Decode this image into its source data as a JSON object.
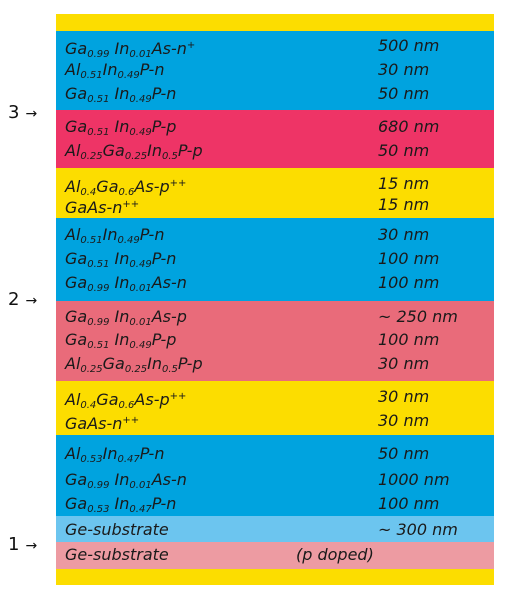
{
  "colors": {
    "yellow": "#fcdd00",
    "blue": "#00a3df",
    "crimson": "#ee3466",
    "rose": "#e96b7a",
    "lightblue": "#6cc5ef",
    "pink": "#ed9ba2"
  },
  "markers": [
    {
      "label": "3",
      "arrow": "→"
    },
    {
      "label": "2",
      "arrow": "→"
    },
    {
      "label": "1",
      "arrow": "→"
    }
  ],
  "layers": [
    {
      "color": "yellow",
      "rows": []
    },
    {
      "color": "blue",
      "rows": [
        {
          "material": [
            [
              "t",
              "Ga"
            ],
            [
              "sub",
              "0.99"
            ],
            [
              "t",
              " In"
            ],
            [
              "sub",
              "0.01"
            ],
            [
              "t",
              "As-n"
            ],
            [
              "sup",
              "+"
            ]
          ],
          "thickness": "500 nm"
        },
        {
          "material": [
            [
              "t",
              "Al"
            ],
            [
              "sub",
              "0.51"
            ],
            [
              "t",
              "In"
            ],
            [
              "sub",
              "0.49"
            ],
            [
              "t",
              "P-n"
            ]
          ],
          "thickness": "30 nm"
        },
        {
          "material": [
            [
              "t",
              "Ga"
            ],
            [
              "sub",
              "0.51"
            ],
            [
              "t",
              " In"
            ],
            [
              "sub",
              "0.49"
            ],
            [
              "t",
              "P-n"
            ]
          ],
          "thickness": "50 nm"
        }
      ]
    },
    {
      "color": "crimson",
      "rows": [
        {
          "material": [
            [
              "t",
              "Ga"
            ],
            [
              "sub",
              "0.51"
            ],
            [
              "t",
              " In"
            ],
            [
              "sub",
              "0.49"
            ],
            [
              "t",
              "P-p"
            ]
          ],
          "thickness": "680 nm"
        },
        {
          "material": [
            [
              "t",
              "Al"
            ],
            [
              "sub",
              "0.25"
            ],
            [
              "t",
              "Ga"
            ],
            [
              "sub",
              "0.25"
            ],
            [
              "t",
              "In"
            ],
            [
              "sub",
              "0.5"
            ],
            [
              "t",
              "P-p"
            ]
          ],
          "thickness": "50 nm"
        }
      ]
    },
    {
      "color": "yellow",
      "rows": [
        {
          "material": [
            [
              "t",
              "Al"
            ],
            [
              "sub",
              "0.4"
            ],
            [
              "t",
              "Ga"
            ],
            [
              "sub",
              "0.6"
            ],
            [
              "t",
              "As-p"
            ],
            [
              "sup",
              "++"
            ]
          ],
          "thickness": "15 nm"
        },
        {
          "material": [
            [
              "t",
              "GaAs-n"
            ],
            [
              "sup",
              "++"
            ]
          ],
          "thickness": "15 nm"
        }
      ]
    },
    {
      "color": "blue",
      "rows": [
        {
          "material": [
            [
              "t",
              "Al"
            ],
            [
              "sub",
              "0.51"
            ],
            [
              "t",
              "In"
            ],
            [
              "sub",
              "0.49"
            ],
            [
              "t",
              "P-n"
            ]
          ],
          "thickness": "30 nm"
        },
        {
          "material": [
            [
              "t",
              "Ga"
            ],
            [
              "sub",
              "0.51"
            ],
            [
              "t",
              " In"
            ],
            [
              "sub",
              "0.49"
            ],
            [
              "t",
              "P-n"
            ]
          ],
          "thickness": "100 nm"
        },
        {
          "material": [
            [
              "t",
              "Ga"
            ],
            [
              "sub",
              "0.99"
            ],
            [
              "t",
              " In"
            ],
            [
              "sub",
              "0.01"
            ],
            [
              "t",
              "As-n"
            ]
          ],
          "thickness": "100 nm"
        }
      ]
    },
    {
      "color": "rose",
      "rows": [
        {
          "material": [
            [
              "t",
              "Ga"
            ],
            [
              "sub",
              "0.99"
            ],
            [
              "t",
              " In"
            ],
            [
              "sub",
              "0.01"
            ],
            [
              "t",
              "As-p"
            ]
          ],
          "thickness": "~ 250 nm"
        },
        {
          "material": [
            [
              "t",
              "Ga"
            ],
            [
              "sub",
              "0.51"
            ],
            [
              "t",
              " In"
            ],
            [
              "sub",
              "0.49"
            ],
            [
              "t",
              "P-p"
            ]
          ],
          "thickness": "100 nm"
        },
        {
          "material": [
            [
              "t",
              "Al"
            ],
            [
              "sub",
              "0.25"
            ],
            [
              "t",
              "Ga"
            ],
            [
              "sub",
              "0.25"
            ],
            [
              "t",
              "In"
            ],
            [
              "sub",
              "0.5"
            ],
            [
              "t",
              "P-p"
            ]
          ],
          "thickness": "30 nm"
        }
      ]
    },
    {
      "color": "yellow",
      "rows": [
        {
          "material": [
            [
              "t",
              "Al"
            ],
            [
              "sub",
              "0.4"
            ],
            [
              "t",
              "Ga"
            ],
            [
              "sub",
              "0.6"
            ],
            [
              "t",
              "As-p"
            ],
            [
              "sup",
              "++"
            ]
          ],
          "thickness": "30 nm"
        },
        {
          "material": [
            [
              "t",
              "GaAs-n"
            ],
            [
              "sup",
              "++"
            ]
          ],
          "thickness": "30 nm"
        }
      ]
    },
    {
      "color": "blue",
      "rows": [
        {
          "material": [
            [
              "t",
              "Al"
            ],
            [
              "sub",
              "0.53"
            ],
            [
              "t",
              "In"
            ],
            [
              "sub",
              "0.47"
            ],
            [
              "t",
              "P-n"
            ]
          ],
          "thickness": "50 nm"
        },
        {
          "material": [
            [
              "t",
              "Ga"
            ],
            [
              "sub",
              "0.99"
            ],
            [
              "t",
              " In"
            ],
            [
              "sub",
              "0.01"
            ],
            [
              "t",
              "As-n"
            ]
          ],
          "thickness": "1000 nm"
        },
        {
          "material": [
            [
              "t",
              "Ga"
            ],
            [
              "sub",
              "0.53"
            ],
            [
              "t",
              " In"
            ],
            [
              "sub",
              "0.47"
            ],
            [
              "t",
              "P-n"
            ]
          ],
          "thickness": "100 nm"
        }
      ]
    },
    {
      "color": "lightblue",
      "rows": [
        {
          "material": [
            [
              "t",
              "Ge-substrate"
            ]
          ],
          "thickness": "~ 300 nm"
        }
      ]
    },
    {
      "color": "pink",
      "rows": [
        {
          "material": [
            [
              "t",
              "Ge-substrate"
            ]
          ],
          "thickness": "",
          "note": "(p doped)"
        }
      ]
    },
    {
      "color": "yellow",
      "rows": []
    }
  ]
}
